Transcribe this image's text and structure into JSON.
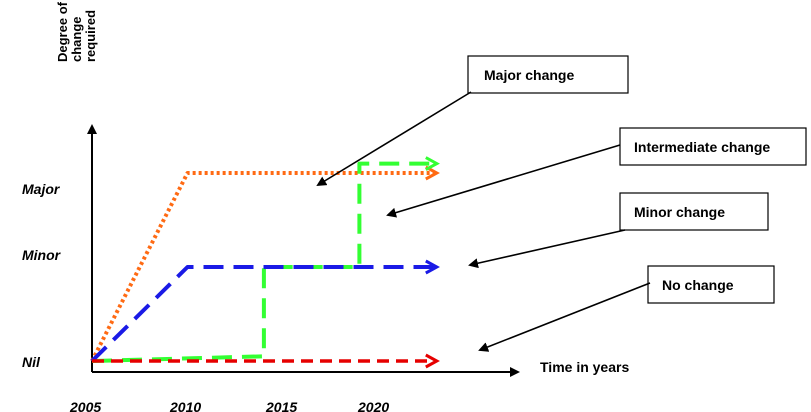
{
  "chart_data": {
    "type": "line",
    "ylabel_lines": [
      "Degree of",
      "change",
      "required"
    ],
    "xlabel": "Time in years",
    "x_ticks": [
      "2005",
      "2010",
      "2015",
      "2020"
    ],
    "y_ticks": [
      "Nil",
      "Minor",
      "Major"
    ],
    "series": [
      {
        "name": "Major change",
        "color": "#FF6A13",
        "dash": "dotted",
        "points": [
          [
            2005,
            0
          ],
          [
            2010,
            2
          ],
          [
            2023,
            2
          ]
        ]
      },
      {
        "name": "Intermediate change",
        "color": "#33FF33",
        "dash": "long-dash",
        "points": [
          [
            2005,
            0
          ],
          [
            2014,
            0.05
          ],
          [
            2014,
            1
          ],
          [
            2019,
            1
          ],
          [
            2019,
            2.1
          ],
          [
            2023,
            2.1
          ]
        ]
      },
      {
        "name": "Minor change",
        "color": "#1A1AE6",
        "dash": "long-dash",
        "points": [
          [
            2005,
            0
          ],
          [
            2010,
            1
          ],
          [
            2023,
            1
          ]
        ]
      },
      {
        "name": "No change",
        "color": "#E60000",
        "dash": "dashed",
        "points": [
          [
            2005,
            0
          ],
          [
            2023,
            0
          ]
        ]
      }
    ]
  },
  "callouts": [
    {
      "text": "Major change"
    },
    {
      "text": "Intermediate change"
    },
    {
      "text": "Minor change"
    },
    {
      "text": "No change"
    }
  ]
}
